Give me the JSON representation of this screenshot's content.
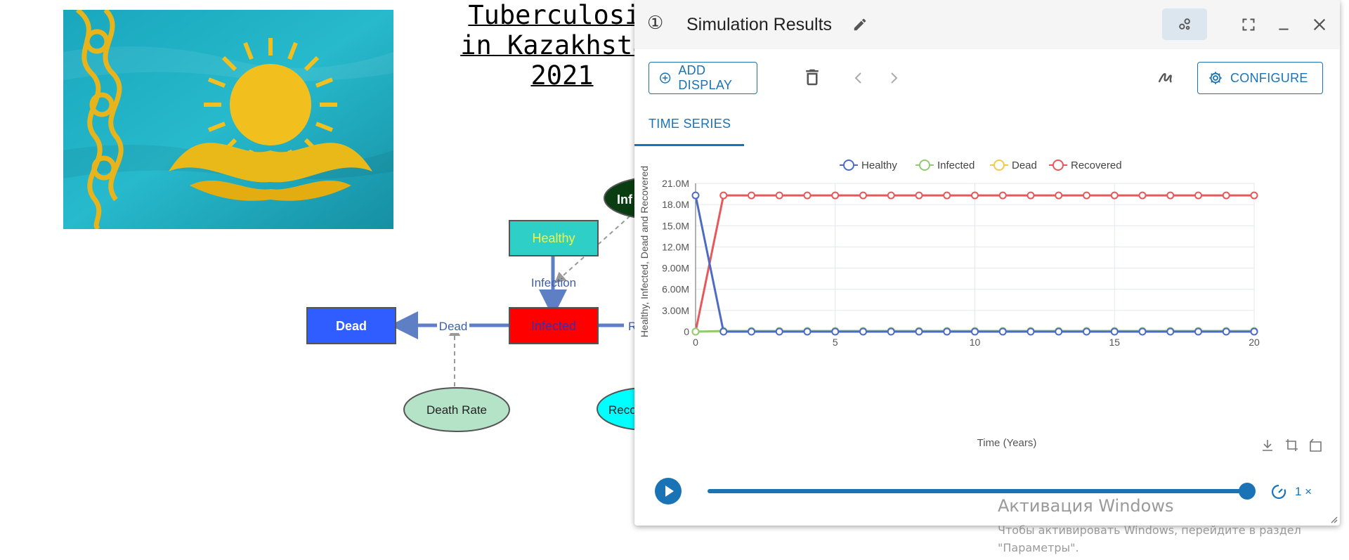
{
  "canvas": {
    "title_lines": [
      "Tuberculosis",
      "in Kazakhstan",
      "2021"
    ],
    "nodes": {
      "healthy": "Healthy",
      "infected_stock": "Infected",
      "dead": "Dead",
      "infected_top": "Inf",
      "recovered_partial": "Reco",
      "death_rate": "Death Rate"
    },
    "flows": {
      "infection": "Infection",
      "dead": "Dead",
      "recovery_partial": "R"
    },
    "colors": {
      "healthy_fill": "#2ecfc6",
      "healthy_text": "#f5f542",
      "infected_fill": "#ff0000",
      "dead_fill": "#2f5dff",
      "death_rate_fill": "#b5e3c8",
      "recovered_fill": "#00ffff",
      "infected_top_fill": "#0a3d12",
      "flow_color": "#5e7fc4",
      "flag_blue": "#1faec2",
      "flag_gold": "#f2c01e"
    }
  },
  "window": {
    "index": "①",
    "title": "Simulation Results",
    "icons": [
      "share-icon",
      "fullscreen-icon",
      "minimize-icon",
      "close-icon",
      "edit-icon"
    ]
  },
  "toolbar": {
    "add_display": "ADD DISPLAY",
    "configure": "CONFIGURE",
    "icons": [
      "add-circle-icon",
      "delete-icon",
      "chevron-left-icon",
      "chevron-right-icon",
      "draw-icon",
      "gear-icon"
    ]
  },
  "tabs": [
    {
      "label": "TIME SERIES",
      "active": true
    }
  ],
  "chart_data": {
    "type": "line",
    "title": "",
    "xlabel": "Time (Years)",
    "ylabel": "Healthy, Infected, Dead and Recovered",
    "xlim": [
      0,
      20
    ],
    "ylim": [
      0,
      21000000
    ],
    "x_ticks": [
      "0",
      "5",
      "10",
      "15",
      "20"
    ],
    "y_ticks": [
      "0",
      "3.00M",
      "6.00M",
      "9.00M",
      "12.0M",
      "15.0M",
      "18.0M",
      "21.0M"
    ],
    "y_tick_values": [
      0,
      3000000,
      6000000,
      9000000,
      12000000,
      15000000,
      18000000,
      21000000
    ],
    "grid": true,
    "legend_position": "top-center",
    "x": [
      0,
      1,
      2,
      3,
      4,
      5,
      6,
      7,
      8,
      9,
      10,
      11,
      12,
      13,
      14,
      15,
      16,
      17,
      18,
      19,
      20
    ],
    "series": [
      {
        "name": "Healthy",
        "color": "#4d6bc4",
        "values": [
          19300000,
          0,
          0,
          0,
          0,
          0,
          0,
          0,
          0,
          0,
          0,
          0,
          0,
          0,
          0,
          0,
          0,
          0,
          0,
          0,
          0
        ]
      },
      {
        "name": "Infected",
        "color": "#91cc75",
        "values": [
          0,
          100000,
          100000,
          100000,
          100000,
          100000,
          100000,
          100000,
          100000,
          100000,
          100000,
          100000,
          100000,
          100000,
          100000,
          100000,
          100000,
          100000,
          100000,
          100000,
          100000
        ]
      },
      {
        "name": "Dead",
        "color": "#f2c94c",
        "values": [
          0,
          50000,
          50000,
          50000,
          50000,
          50000,
          50000,
          50000,
          50000,
          50000,
          50000,
          50000,
          50000,
          50000,
          50000,
          50000,
          50000,
          50000,
          50000,
          50000,
          50000
        ]
      },
      {
        "name": "Recovered",
        "color": "#e8585a",
        "values": [
          0,
          19300000,
          19300000,
          19300000,
          19300000,
          19300000,
          19300000,
          19300000,
          19300000,
          19300000,
          19300000,
          19300000,
          19300000,
          19300000,
          19300000,
          19300000,
          19300000,
          19300000,
          19300000,
          19300000,
          19300000
        ]
      }
    ],
    "chart_tools": [
      "download-icon",
      "zoom-icon",
      "zoom-reset-icon"
    ]
  },
  "player": {
    "speed": "1 ×",
    "progress": 1.0
  },
  "watermark": {
    "title": "Активация Windows",
    "subtitle": "Чтобы активировать Windows, перейдите в раздел \"Параметры\"."
  }
}
